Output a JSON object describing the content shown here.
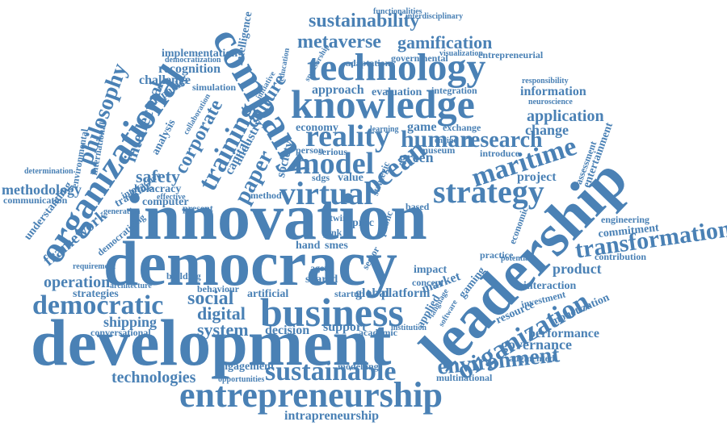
{
  "word_color": "#4a81b5",
  "background": "#ffffff",
  "words": [
    "innovation",
    "democracy",
    "development",
    "leadership",
    "business",
    "entrepreneurship",
    "knowledge",
    "technology",
    "company",
    "organizational",
    "organization",
    "sustainable",
    "democratic",
    "virtual",
    "strategy",
    "reality",
    "model",
    "ocean",
    "maritime",
    "research",
    "human",
    "transformation",
    "environment",
    "sustainability",
    "metaverse",
    "gamification",
    "philosophy",
    "intellectual",
    "training",
    "corporate",
    "culture",
    "technologies",
    "framework",
    "methodology",
    "safety",
    "social",
    "digital",
    "system",
    "shipping",
    "operation",
    "strategies",
    "governance",
    "performance",
    "product",
    "application",
    "change",
    "information",
    "project",
    "intrapreneurship",
    "engagement",
    "recognition",
    "challenge",
    "implementation",
    "approach",
    "evaluation",
    "integration",
    "adaptation",
    "economy",
    "game",
    "exchange",
    "decision",
    "support",
    "artificial",
    "global",
    "platform",
    "market",
    "impact",
    "concept",
    "shared",
    "agent",
    "smes",
    "hand",
    "value",
    "green",
    "society",
    "paper",
    "capital",
    "industry",
    "intelligence",
    "entertainment",
    "assessment",
    "commitment",
    "engineering",
    "resource",
    "investment",
    "monetization",
    "augmented",
    "multinational",
    "modelling",
    "opportunities",
    "interaction",
    "contribution",
    "practice",
    "gaming",
    "applied",
    "sector",
    "computer",
    "holacracy",
    "tracking",
    "understanding",
    "communication",
    "determination",
    "environmental",
    "international",
    "analysis",
    "companies",
    "simulation",
    "building",
    "behaviour",
    "conversational",
    "architecture",
    "requirement",
    "democratizing",
    "generation",
    "effective",
    "present",
    "person",
    "serious",
    "museum",
    "introduce",
    "neuroscience",
    "responsibility",
    "entrepreneurial",
    "governmental",
    "education",
    "functionalities",
    "interdisciplinary",
    "visualization",
    "democratization",
    "learning",
    "sdgs",
    "method",
    "twin",
    "proc",
    "startup",
    "strategic",
    "academic",
    "institution",
    "software",
    "interactive",
    "economic",
    "potential",
    "language",
    "sponsorship",
    "initiative",
    "collaboration",
    "pink",
    "public",
    "based",
    "engine"
  ]
}
